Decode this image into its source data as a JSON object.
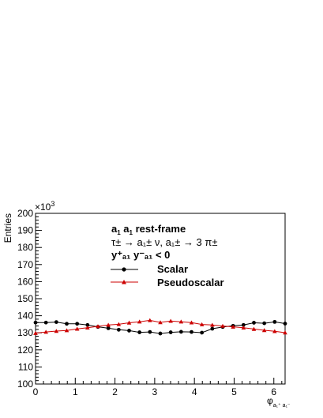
{
  "chart_data": {
    "type": "line",
    "ylabel": "Entries",
    "y_multiplier": "×10",
    "y_multiplier_exp": "3",
    "xlim": [
      0,
      6.2832
    ],
    "ylim": [
      100,
      200
    ],
    "x_ticks": [
      0,
      1,
      2,
      3,
      4,
      5,
      6
    ],
    "x_tick_labels": [
      "0",
      "1",
      "2",
      "3",
      "4",
      "5",
      "6"
    ],
    "y_ticks": [
      100,
      110,
      120,
      130,
      140,
      150,
      160,
      170,
      180,
      190,
      200
    ],
    "y_tick_labels": [
      "100",
      "110",
      "120",
      "130",
      "140",
      "150",
      "160",
      "170",
      "180",
      "190",
      "200"
    ],
    "xlabel_main": "φ",
    "xlabel_sub": "a₁⁺ a₁⁻",
    "grid": false,
    "annotations": {
      "line1_main": "a",
      "line1_sub": "1",
      "line1_mid": " a",
      "line1_sub2": "1",
      "line1_end": "  rest-frame",
      "line2": "τ± → a₁± ν, a₁± → 3 π±",
      "line3": "y⁺ₐ₁ y⁻ₐ₁ < 0"
    },
    "legend_position": "top-left",
    "bins": 24,
    "series": [
      {
        "name": "Scalar",
        "color": "#000000",
        "marker": "circle",
        "values": [
          136.0,
          136.0,
          136.3,
          135.3,
          135.3,
          134.6,
          133.5,
          132.7,
          131.8,
          131.3,
          130.3,
          130.5,
          129.6,
          130.3,
          130.6,
          130.5,
          130.1,
          132.4,
          133.4,
          134.1,
          134.6,
          135.9,
          135.6,
          136.4,
          135.4
        ]
      },
      {
        "name": "Pseudoscalar",
        "color": "#cc0000",
        "marker": "triangle",
        "values": [
          129.8,
          130.5,
          131.0,
          131.4,
          132.3,
          133.0,
          133.8,
          134.6,
          135.0,
          135.9,
          136.5,
          137.3,
          136.1,
          136.9,
          136.5,
          136.0,
          134.9,
          134.6,
          134.0,
          133.5,
          133.0,
          132.2,
          131.5,
          130.9,
          130.1
        ]
      }
    ]
  }
}
